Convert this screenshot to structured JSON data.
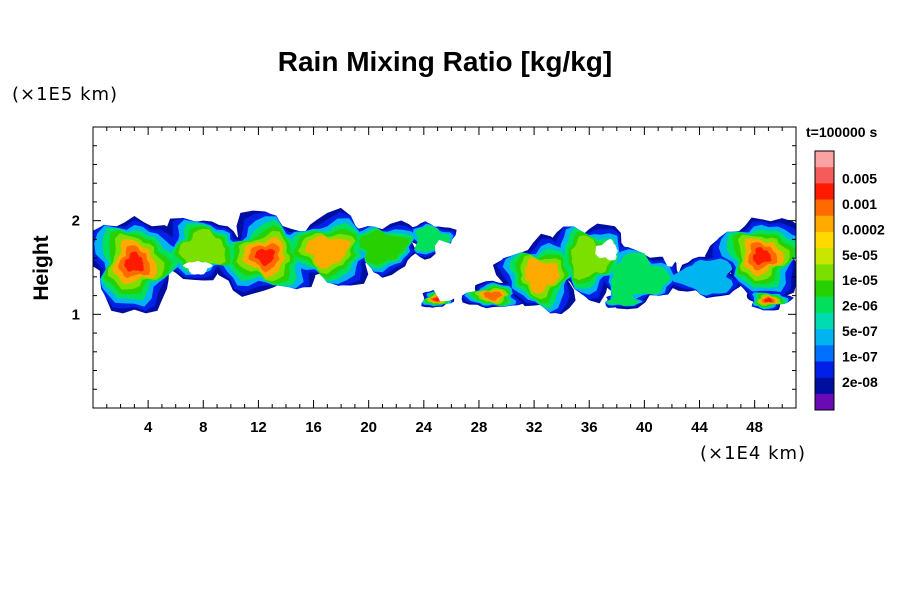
{
  "chart_data": {
    "type": "heatmap",
    "title": "Rain Mixing Ratio [kg/kg]",
    "ylabel": "Height",
    "xlabel": "",
    "x_unit": "(×1E4 km)",
    "y_unit": "(×1E5 km)",
    "time_label": "t=100000 s",
    "xlim": [
      0,
      51
    ],
    "ylim": [
      0,
      3
    ],
    "x_ticks": [
      4,
      8,
      12,
      16,
      20,
      24,
      28,
      32,
      36,
      40,
      44,
      48
    ],
    "y_ticks": [
      1,
      2
    ],
    "colorbar": {
      "labels": [
        "0.005",
        "0.001",
        "0.0002",
        "5e-05",
        "1e-05",
        "2e-06",
        "5e-07",
        "1e-07",
        "2e-08"
      ],
      "colors": [
        "#fba3a3",
        "#f55b5b",
        "#ff1a00",
        "#ff6a00",
        "#ffaa00",
        "#ffd900",
        "#c8e600",
        "#7be000",
        "#27d000",
        "#00e05a",
        "#00dcb0",
        "#00b4f0",
        "#0070ff",
        "#0020e8",
        "#000ea0",
        "#6a0ab4"
      ]
    }
  }
}
